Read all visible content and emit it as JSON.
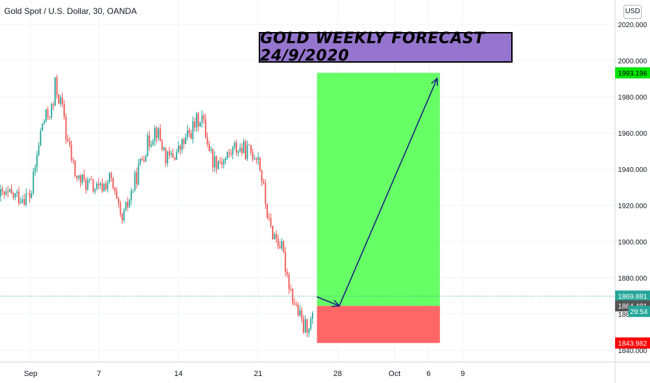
{
  "symbol_title": "Gold Spot / U.S. Dollar, 30, OANDA",
  "currency_button": "USD",
  "forecast_label": "GOLD WEEKLY FORECAST 24/9/2020",
  "colors": {
    "up_candle": "#26a69a",
    "down_candle": "#ef5350",
    "profit_zone": "#66ff66",
    "loss_zone": "#ff6666",
    "arrow": "#1a237e",
    "label_bg": "#9575cd"
  },
  "chart_data": {
    "type": "candlestick",
    "x_tick_labels": [
      "Sep",
      "7",
      "14",
      "21",
      "28",
      "Oct",
      "6",
      "9"
    ],
    "y_tick_labels": [
      "1840.000",
      "1860.000",
      "1880.000",
      "1900.000",
      "1920.000",
      "1940.000",
      "1960.000",
      "1980.000",
      "2000.000",
      "2020.000"
    ],
    "ylim": [
      1835,
      2025
    ],
    "current_price": "1869.881",
    "countdown": "29:54",
    "price_tags": [
      {
        "value": "1993.196",
        "color": "#00e600",
        "text_color": "#000000"
      },
      {
        "value": "1869.881",
        "color": "#26a69a",
        "text_color": "#ffffff"
      },
      {
        "value": "1864.481",
        "color": "#555555",
        "text_color": "#ffffff"
      },
      {
        "value": "1843.982",
        "color": "#ff0000",
        "text_color": "#ffffff"
      }
    ],
    "price_path": [
      {
        "x": "Sep 1",
        "y": 1925
      },
      {
        "x": "Sep 2",
        "y": 1965
      },
      {
        "x": "Sep 3",
        "y": 1975
      },
      {
        "x": "Sep 3",
        "y": 1990
      },
      {
        "x": "Sep 4",
        "y": 1968
      },
      {
        "x": "Sep 4",
        "y": 1962
      },
      {
        "x": "Sep 5",
        "y": 1935
      },
      {
        "x": "Sep 6",
        "y": 1932
      },
      {
        "x": "Sep 7",
        "y": 1928
      },
      {
        "x": "Sep 8",
        "y": 1935
      },
      {
        "x": "Sep 9",
        "y": 1910
      },
      {
        "x": "Sep 10",
        "y": 1930
      },
      {
        "x": "Sep 11",
        "y": 1950
      },
      {
        "x": "Sep 12",
        "y": 1963
      },
      {
        "x": "Sep 13",
        "y": 1945
      },
      {
        "x": "Sep 14",
        "y": 1950
      },
      {
        "x": "Sep 15",
        "y": 1960
      },
      {
        "x": "Sep 16",
        "y": 1970
      },
      {
        "x": "Sep 17",
        "y": 1945
      },
      {
        "x": "Sep 18",
        "y": 1945
      },
      {
        "x": "Sep 19",
        "y": 1952
      },
      {
        "x": "Sep 20",
        "y": 1950
      },
      {
        "x": "Sep 21",
        "y": 1948
      },
      {
        "x": "Sep 22",
        "y": 1908
      },
      {
        "x": "Sep 23",
        "y": 1898
      },
      {
        "x": "Sep 24",
        "y": 1870
      },
      {
        "x": "Sep 25",
        "y": 1852
      },
      {
        "x": "Sep 26",
        "y": 1858
      }
    ],
    "trade_setup": {
      "entry": 1864.481,
      "target": 1993.196,
      "stop": 1843.982,
      "start": "Sep 26",
      "end": "Oct 7"
    }
  }
}
